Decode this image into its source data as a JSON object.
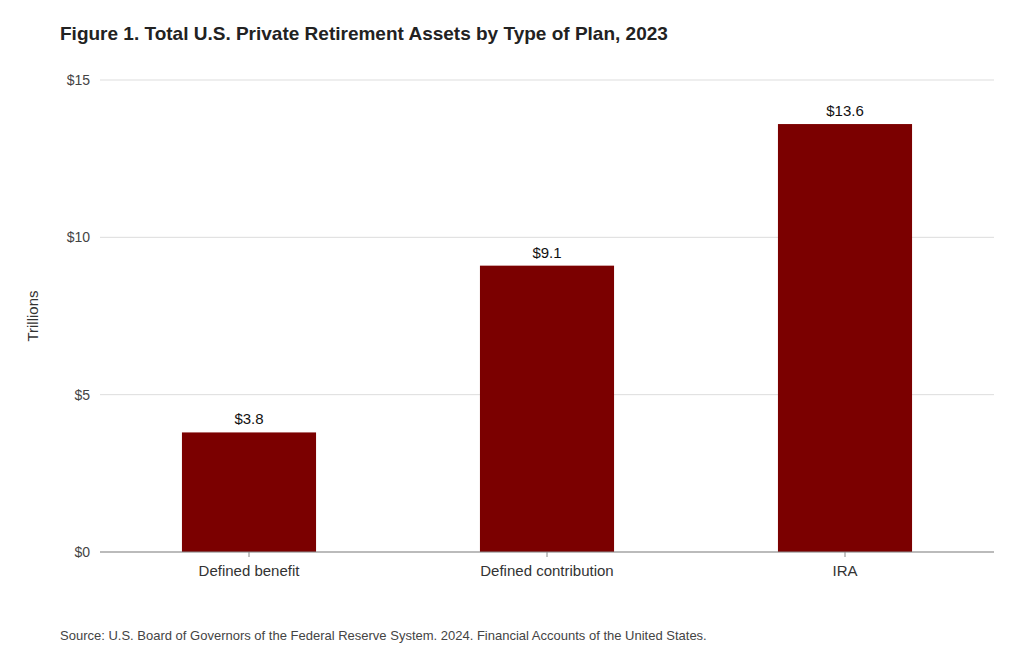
{
  "chart_data": {
    "type": "bar",
    "title": "Figure 1. Total U.S. Private Retirement Assets by Type of Plan, 2023",
    "categories": [
      "Defined benefit",
      "Defined contribution",
      "IRA"
    ],
    "values": [
      3.8,
      9.1,
      13.6
    ],
    "value_labels": [
      "$3.8",
      "$9.1",
      "$13.6"
    ],
    "data_labels": true,
    "color": "#7B0000",
    "ylabel": "Trillions",
    "ylim": [
      0,
      15
    ],
    "yticks": [
      {
        "value": 0,
        "label": "$0"
      },
      {
        "value": 5,
        "label": "$5"
      },
      {
        "value": 10,
        "label": "$10"
      },
      {
        "value": 15,
        "label": "$15"
      }
    ],
    "grid": true,
    "annotations": [
      "Source: U.S. Board of Governors of the Federal Reserve System. 2024. Financial Accounts of the United States."
    ]
  }
}
